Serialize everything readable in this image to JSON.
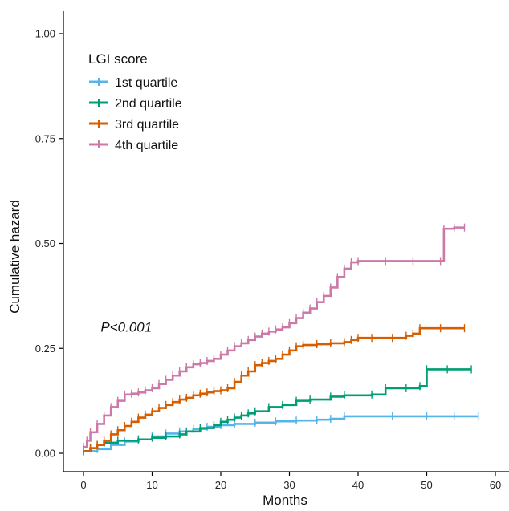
{
  "chart_data": {
    "type": "line",
    "xlabel": "Months",
    "ylabel": "Cumulative hazard",
    "xlim": [
      -3,
      62
    ],
    "ylim": [
      -0.02,
      1.05
    ],
    "xticks": [
      0,
      10,
      20,
      30,
      40,
      50,
      60
    ],
    "xtick_labels": [
      "0",
      "10",
      "20",
      "30",
      "40",
      "50",
      "60"
    ],
    "yticks": [
      0,
      0.25,
      0.5,
      0.75,
      1.0
    ],
    "ytick_labels": [
      "0.00",
      "0.25",
      "0.50",
      "0.75",
      "1.00"
    ],
    "legend": {
      "title": "LGI score",
      "placement": "top-left"
    },
    "annotation": {
      "text": "P<0.001",
      "x": 2.5,
      "y": 0.29
    },
    "grid": false,
    "series": [
      {
        "name": "1st quartile",
        "color": "#56B4E9",
        "points": [
          [
            0,
            0.005
          ],
          [
            2,
            0.01
          ],
          [
            4,
            0.02
          ],
          [
            6,
            0.028
          ],
          [
            8,
            0.033
          ],
          [
            10,
            0.04
          ],
          [
            12,
            0.047
          ],
          [
            14,
            0.052
          ],
          [
            16,
            0.058
          ],
          [
            18,
            0.063
          ],
          [
            20,
            0.067
          ],
          [
            22,
            0.07
          ],
          [
            25,
            0.073
          ],
          [
            28,
            0.076
          ],
          [
            31,
            0.078
          ],
          [
            34,
            0.08
          ],
          [
            36,
            0.082
          ],
          [
            38,
            0.088
          ],
          [
            45,
            0.088
          ],
          [
            50,
            0.088
          ],
          [
            54,
            0.088
          ],
          [
            57.5,
            0.088
          ]
        ]
      },
      {
        "name": "2nd quartile",
        "color": "#009E73",
        "points": [
          [
            0,
            0.005
          ],
          [
            1,
            0.012
          ],
          [
            2,
            0.02
          ],
          [
            3,
            0.025
          ],
          [
            5,
            0.03
          ],
          [
            8,
            0.033
          ],
          [
            10,
            0.037
          ],
          [
            12,
            0.04
          ],
          [
            14,
            0.045
          ],
          [
            15,
            0.052
          ],
          [
            17,
            0.06
          ],
          [
            19,
            0.067
          ],
          [
            20,
            0.075
          ],
          [
            21,
            0.08
          ],
          [
            22,
            0.085
          ],
          [
            23,
            0.09
          ],
          [
            24,
            0.095
          ],
          [
            25,
            0.1
          ],
          [
            27,
            0.11
          ],
          [
            29,
            0.115
          ],
          [
            31,
            0.125
          ],
          [
            33,
            0.128
          ],
          [
            36,
            0.135
          ],
          [
            38,
            0.138
          ],
          [
            42,
            0.14
          ],
          [
            44,
            0.155
          ],
          [
            47,
            0.155
          ],
          [
            49,
            0.16
          ],
          [
            50,
            0.2
          ],
          [
            53,
            0.2
          ],
          [
            56.5,
            0.2
          ]
        ]
      },
      {
        "name": "3rd quartile",
        "color": "#D55E00",
        "points": [
          [
            0,
            0.005
          ],
          [
            1,
            0.012
          ],
          [
            2,
            0.02
          ],
          [
            3,
            0.03
          ],
          [
            4,
            0.045
          ],
          [
            5,
            0.055
          ],
          [
            6,
            0.065
          ],
          [
            7,
            0.075
          ],
          [
            8,
            0.085
          ],
          [
            9,
            0.092
          ],
          [
            10,
            0.1
          ],
          [
            11,
            0.108
          ],
          [
            12,
            0.115
          ],
          [
            13,
            0.122
          ],
          [
            14,
            0.128
          ],
          [
            15,
            0.132
          ],
          [
            16,
            0.138
          ],
          [
            17,
            0.142
          ],
          [
            18,
            0.145
          ],
          [
            19,
            0.148
          ],
          [
            20,
            0.15
          ],
          [
            21,
            0.155
          ],
          [
            22,
            0.17
          ],
          [
            23,
            0.185
          ],
          [
            24,
            0.195
          ],
          [
            25,
            0.21
          ],
          [
            26,
            0.215
          ],
          [
            27,
            0.22
          ],
          [
            28,
            0.225
          ],
          [
            29,
            0.235
          ],
          [
            30,
            0.245
          ],
          [
            31,
            0.255
          ],
          [
            32,
            0.258
          ],
          [
            34,
            0.26
          ],
          [
            36,
            0.262
          ],
          [
            38,
            0.265
          ],
          [
            39,
            0.27
          ],
          [
            40,
            0.275
          ],
          [
            42,
            0.275
          ],
          [
            45,
            0.275
          ],
          [
            47,
            0.28
          ],
          [
            48,
            0.285
          ],
          [
            49,
            0.298
          ],
          [
            52,
            0.298
          ],
          [
            55.5,
            0.298
          ]
        ]
      },
      {
        "name": "4th quartile",
        "color": "#CC79A7",
        "points": [
          [
            0,
            0.015
          ],
          [
            0.5,
            0.03
          ],
          [
            1,
            0.05
          ],
          [
            2,
            0.07
          ],
          [
            3,
            0.09
          ],
          [
            4,
            0.11
          ],
          [
            5,
            0.125
          ],
          [
            6,
            0.14
          ],
          [
            7,
            0.142
          ],
          [
            8,
            0.145
          ],
          [
            9,
            0.15
          ],
          [
            10,
            0.155
          ],
          [
            11,
            0.165
          ],
          [
            12,
            0.175
          ],
          [
            13,
            0.185
          ],
          [
            14,
            0.195
          ],
          [
            15,
            0.205
          ],
          [
            16,
            0.212
          ],
          [
            17,
            0.215
          ],
          [
            18,
            0.22
          ],
          [
            19,
            0.225
          ],
          [
            20,
            0.235
          ],
          [
            21,
            0.245
          ],
          [
            22,
            0.255
          ],
          [
            23,
            0.262
          ],
          [
            24,
            0.27
          ],
          [
            25,
            0.278
          ],
          [
            26,
            0.285
          ],
          [
            27,
            0.29
          ],
          [
            28,
            0.295
          ],
          [
            29,
            0.3
          ],
          [
            30,
            0.31
          ],
          [
            31,
            0.322
          ],
          [
            32,
            0.335
          ],
          [
            33,
            0.345
          ],
          [
            34,
            0.36
          ],
          [
            35,
            0.375
          ],
          [
            36,
            0.395
          ],
          [
            37,
            0.42
          ],
          [
            38,
            0.44
          ],
          [
            39,
            0.455
          ],
          [
            40,
            0.458
          ],
          [
            44,
            0.458
          ],
          [
            48,
            0.458
          ],
          [
            52,
            0.458
          ],
          [
            52.5,
            0.535
          ],
          [
            54,
            0.538
          ],
          [
            55.5,
            0.538
          ]
        ]
      }
    ]
  }
}
